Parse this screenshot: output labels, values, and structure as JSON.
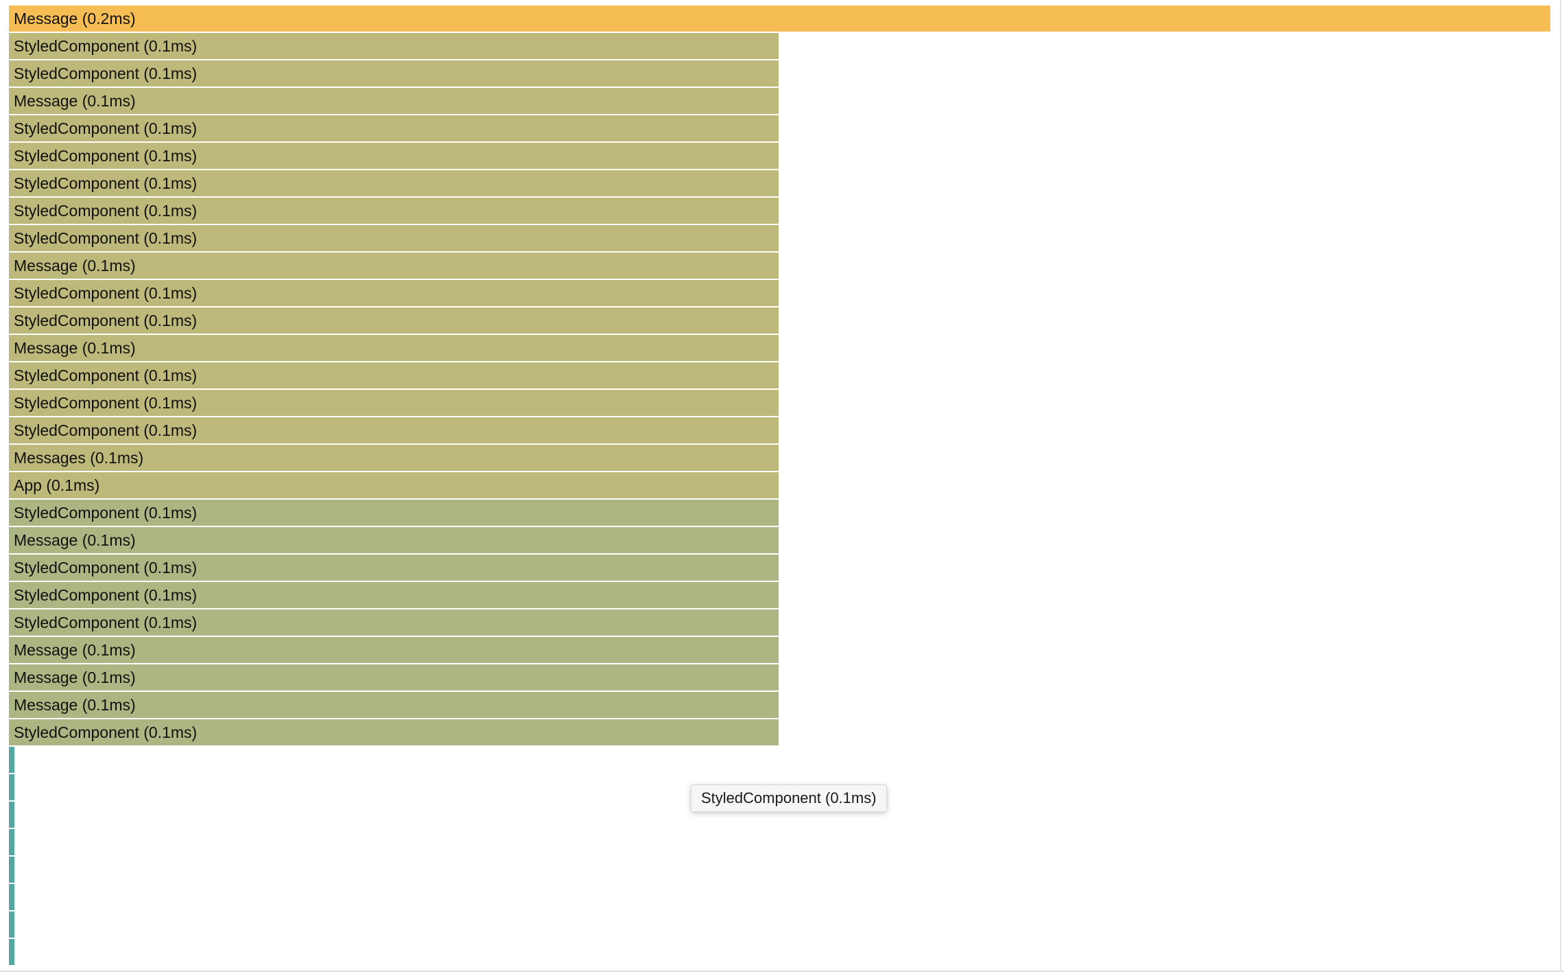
{
  "flamegraph": {
    "colors": {
      "hot": "#f6bd55",
      "warm": "#bdb97a",
      "cool": "#abb682",
      "stub": "#53a8a2"
    },
    "bars": [
      {
        "label": "Message (0.2ms)",
        "tone": "hot",
        "fraction": 1.0
      },
      {
        "label": "StyledComponent (0.1ms)",
        "tone": "warm",
        "fraction": 0.5
      },
      {
        "label": "StyledComponent (0.1ms)",
        "tone": "warm",
        "fraction": 0.5
      },
      {
        "label": "Message (0.1ms)",
        "tone": "warm",
        "fraction": 0.5
      },
      {
        "label": "StyledComponent (0.1ms)",
        "tone": "warm",
        "fraction": 0.5
      },
      {
        "label": "StyledComponent (0.1ms)",
        "tone": "warm",
        "fraction": 0.5
      },
      {
        "label": "StyledComponent (0.1ms)",
        "tone": "warm",
        "fraction": 0.5
      },
      {
        "label": "StyledComponent (0.1ms)",
        "tone": "warm",
        "fraction": 0.5
      },
      {
        "label": "StyledComponent (0.1ms)",
        "tone": "warm",
        "fraction": 0.5
      },
      {
        "label": "Message (0.1ms)",
        "tone": "warm",
        "fraction": 0.5
      },
      {
        "label": "StyledComponent (0.1ms)",
        "tone": "warm",
        "fraction": 0.5
      },
      {
        "label": "StyledComponent (0.1ms)",
        "tone": "warm",
        "fraction": 0.5
      },
      {
        "label": "Message (0.1ms)",
        "tone": "warm",
        "fraction": 0.5
      },
      {
        "label": "StyledComponent (0.1ms)",
        "tone": "warm",
        "fraction": 0.5
      },
      {
        "label": "StyledComponent (0.1ms)",
        "tone": "warm",
        "fraction": 0.5
      },
      {
        "label": "StyledComponent (0.1ms)",
        "tone": "warm",
        "fraction": 0.5
      },
      {
        "label": "Messages (0.1ms)",
        "tone": "warm",
        "fraction": 0.5
      },
      {
        "label": "App (0.1ms)",
        "tone": "warm",
        "fraction": 0.5
      },
      {
        "label": "StyledComponent (0.1ms)",
        "tone": "cool",
        "fraction": 0.5
      },
      {
        "label": "Message (0.1ms)",
        "tone": "cool",
        "fraction": 0.5
      },
      {
        "label": "StyledComponent (0.1ms)",
        "tone": "cool",
        "fraction": 0.5
      },
      {
        "label": "StyledComponent (0.1ms)",
        "tone": "cool",
        "fraction": 0.5
      },
      {
        "label": "StyledComponent (0.1ms)",
        "tone": "cool",
        "fraction": 0.5
      },
      {
        "label": "Message (0.1ms)",
        "tone": "cool",
        "fraction": 0.5
      },
      {
        "label": "Message (0.1ms)",
        "tone": "cool",
        "fraction": 0.5
      },
      {
        "label": "Message (0.1ms)",
        "tone": "cool",
        "fraction": 0.5
      },
      {
        "label": "StyledComponent (0.1ms)",
        "tone": "cool",
        "fraction": 0.5
      }
    ],
    "stub_count": 8,
    "tooltip": "StyledComponent (0.1ms)"
  }
}
